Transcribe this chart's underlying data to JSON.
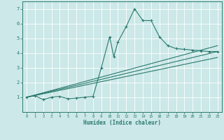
{
  "xlabel": "Humidex (Indice chaleur)",
  "xlim": [
    -0.5,
    23.5
  ],
  "ylim": [
    0,
    7.5
  ],
  "xticks": [
    0,
    1,
    2,
    3,
    4,
    5,
    6,
    7,
    8,
    9,
    10,
    11,
    12,
    13,
    14,
    15,
    16,
    17,
    18,
    19,
    20,
    21,
    22,
    23
  ],
  "yticks": [
    1,
    2,
    3,
    4,
    5,
    6,
    7
  ],
  "bg_color": "#cce8e8",
  "line_color": "#2a7a6e",
  "grid_color": "#aad4d4",
  "main_x": [
    0,
    1,
    2,
    3,
    4,
    5,
    6,
    7,
    8,
    9,
    10,
    10.5,
    11,
    12,
    13,
    14,
    15,
    16,
    17,
    18,
    19,
    20,
    21,
    22,
    23
  ],
  "main_y": [
    1.0,
    1.1,
    0.85,
    1.0,
    1.05,
    0.9,
    0.95,
    1.0,
    1.05,
    3.0,
    5.1,
    3.75,
    4.75,
    5.8,
    7.0,
    6.2,
    6.2,
    5.1,
    4.5,
    4.3,
    4.25,
    4.2,
    4.15,
    4.1,
    4.1
  ],
  "trend1_x": [
    0,
    23
  ],
  "trend1_y": [
    1.0,
    4.5
  ],
  "trend2_x": [
    0,
    23
  ],
  "trend2_y": [
    1.0,
    4.1
  ],
  "trend3_x": [
    0,
    23
  ],
  "trend3_y": [
    1.0,
    3.7
  ]
}
